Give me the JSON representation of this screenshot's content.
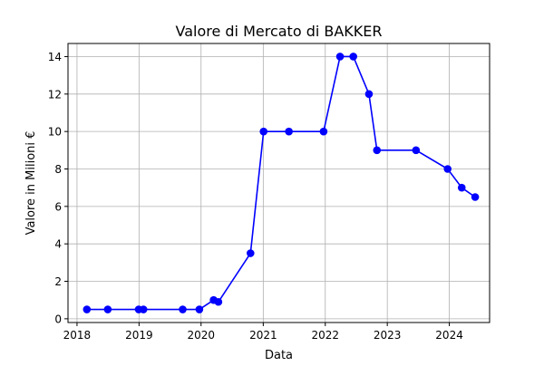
{
  "chart_data": {
    "type": "line",
    "title": "Valore di Mercato di BAKKER",
    "xlabel": "Data",
    "ylabel": "Valore in Milioni €",
    "x_is_date": true,
    "xlim": [
      "2017-11-09",
      "2024-08-25"
    ],
    "ylim": [
      -0.2,
      14.7
    ],
    "xticks": [
      "2018",
      "2019",
      "2020",
      "2021",
      "2022",
      "2023",
      "2024"
    ],
    "yticks": [
      0,
      2,
      4,
      6,
      8,
      10,
      12,
      14
    ],
    "grid": true,
    "series": [
      {
        "name": "",
        "color": "#0000ff",
        "marker": "circle",
        "x": [
          "2018-02-28",
          "2018-07-01",
          "2018-12-30",
          "2019-01-27",
          "2019-09-15",
          "2019-12-22",
          "2020-03-15",
          "2020-04-12",
          "2020-10-18",
          "2021-01-03",
          "2021-06-01",
          "2021-12-22",
          "2022-03-29",
          "2022-06-15",
          "2022-09-15",
          "2022-11-01",
          "2023-06-19",
          "2023-12-22",
          "2024-03-14",
          "2024-06-01"
        ],
        "y": [
          0.5,
          0.5,
          0.5,
          0.5,
          0.5,
          0.5,
          1.0,
          0.9,
          3.5,
          10,
          10,
          10,
          14,
          14,
          12,
          9,
          9,
          8,
          7,
          6.5
        ]
      }
    ]
  }
}
